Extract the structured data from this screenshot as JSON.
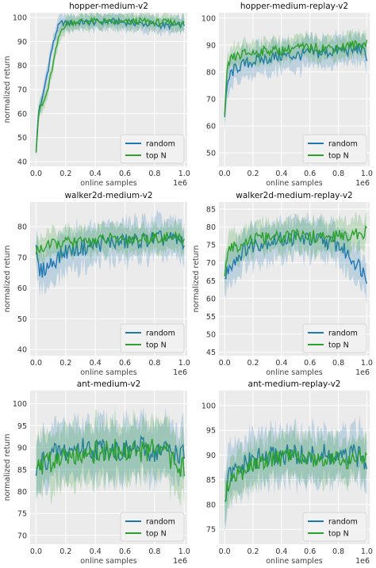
{
  "colors": {
    "random": "#1f77b4",
    "topN": "#2ca02c",
    "panel_bg": "#ebebeb",
    "grid": "#ffffff"
  },
  "chart_data": [
    {
      "type": "line",
      "title": "hopper-medium-v2",
      "xlabel": "online samples",
      "ylabel": "normalized return",
      "x_multiplier": "1e6",
      "xlim": [
        -0.04,
        1.02
      ],
      "ylim": [
        38,
        102
      ],
      "xticks": [
        0.0,
        0.2,
        0.4,
        0.6,
        0.8,
        1.0
      ],
      "xtick_labels": [
        "0.0",
        "0.2",
        "0.4",
        "0.6",
        "0.8",
        "1.0"
      ],
      "yticks": [
        40,
        50,
        60,
        70,
        80,
        90,
        100
      ],
      "ytick_labels": [
        "40",
        "50",
        "60",
        "70",
        "80",
        "90",
        "100"
      ],
      "legend": "lower-right",
      "series": [
        {
          "name": "random",
          "x": [
            0.0,
            0.02,
            0.04,
            0.06,
            0.08,
            0.1,
            0.12,
            0.14,
            0.16,
            0.18,
            0.2,
            0.25,
            0.3,
            0.4,
            0.5,
            0.6,
            0.7,
            0.8,
            0.9,
            1.0
          ],
          "values": [
            45,
            63,
            65,
            72,
            78,
            85,
            90,
            95,
            97,
            98,
            97.5,
            98,
            98,
            98,
            98.5,
            98,
            97.5,
            97,
            96.5,
            97
          ],
          "band": 3
        },
        {
          "name": "top N",
          "x": [
            0.0,
            0.02,
            0.04,
            0.06,
            0.08,
            0.1,
            0.12,
            0.14,
            0.16,
            0.18,
            0.2,
            0.25,
            0.3,
            0.4,
            0.5,
            0.6,
            0.7,
            0.8,
            0.9,
            1.0
          ],
          "values": [
            45,
            62,
            63,
            66,
            70,
            76,
            82,
            88,
            93,
            96,
            97,
            98,
            98.5,
            98.5,
            98,
            98,
            98.5,
            98,
            98,
            97.5
          ],
          "band": 3
        }
      ]
    },
    {
      "type": "line",
      "title": "hopper-medium-replay-v2",
      "xlabel": "online samples",
      "ylabel": "",
      "x_multiplier": "1e6",
      "xlim": [
        -0.04,
        1.02
      ],
      "ylim": [
        45,
        102
      ],
      "xticks": [
        0.0,
        0.2,
        0.4,
        0.6,
        0.8,
        1.0
      ],
      "xtick_labels": [
        "0.0",
        "0.2",
        "0.4",
        "0.6",
        "0.8",
        "1.0"
      ],
      "yticks": [
        50,
        60,
        70,
        80,
        90,
        100
      ],
      "ytick_labels": [
        "50",
        "60",
        "70",
        "80",
        "90",
        "100"
      ],
      "legend": "lower-right",
      "series": [
        {
          "name": "random",
          "x": [
            0.0,
            0.02,
            0.05,
            0.1,
            0.15,
            0.2,
            0.3,
            0.4,
            0.5,
            0.6,
            0.7,
            0.8,
            0.9,
            0.95,
            1.0
          ],
          "values": [
            63,
            76,
            80,
            82,
            83,
            84,
            85,
            86,
            86,
            87,
            87,
            88,
            88,
            89,
            86
          ],
          "band": 5
        },
        {
          "name": "top N",
          "x": [
            0.0,
            0.02,
            0.05,
            0.1,
            0.15,
            0.2,
            0.3,
            0.4,
            0.5,
            0.6,
            0.7,
            0.8,
            0.9,
            0.95,
            1.0
          ],
          "values": [
            63,
            82,
            85,
            86,
            87,
            87,
            88,
            88,
            89,
            89,
            89,
            89,
            90,
            90,
            91
          ],
          "band": 4
        }
      ]
    },
    {
      "type": "line",
      "title": "walker2d-medium-v2",
      "xlabel": "online samples",
      "ylabel": "normalized return",
      "x_multiplier": "1e6",
      "xlim": [
        -0.04,
        1.02
      ],
      "ylim": [
        38,
        88
      ],
      "xticks": [
        0.0,
        0.2,
        0.4,
        0.6,
        0.8,
        1.0
      ],
      "xtick_labels": [
        "0.0",
        "0.2",
        "0.4",
        "0.6",
        "0.8",
        "1.0"
      ],
      "yticks": [
        40,
        50,
        60,
        70,
        80
      ],
      "ytick_labels": [
        "40",
        "50",
        "60",
        "70",
        "80"
      ],
      "legend": "lower-right",
      "series": [
        {
          "name": "random",
          "x": [
            0.0,
            0.02,
            0.05,
            0.1,
            0.15,
            0.2,
            0.3,
            0.4,
            0.5,
            0.6,
            0.7,
            0.8,
            0.9,
            1.0
          ],
          "values": [
            72,
            65,
            66,
            68,
            70,
            72,
            73,
            74,
            75,
            75,
            75.5,
            76,
            76,
            75
          ],
          "band": 6
        },
        {
          "name": "top N",
          "x": [
            0.0,
            0.02,
            0.05,
            0.1,
            0.15,
            0.2,
            0.3,
            0.4,
            0.5,
            0.6,
            0.7,
            0.8,
            0.9,
            1.0
          ],
          "values": [
            72,
            73,
            73,
            74,
            74.5,
            75,
            75,
            75.5,
            76,
            76,
            76,
            76.5,
            76.5,
            76
          ],
          "band": 4
        }
      ]
    },
    {
      "type": "line",
      "title": "walker2d-medium-replay-v2",
      "xlabel": "online samples",
      "ylabel": "normalized return",
      "x_multiplier": "1e6",
      "xlim": [
        -0.04,
        1.02
      ],
      "ylim": [
        44,
        87
      ],
      "xticks": [
        0.0,
        0.2,
        0.4,
        0.6,
        0.8,
        1.0
      ],
      "xtick_labels": [
        "0.0",
        "0.2",
        "0.4",
        "0.6",
        "0.8",
        "1.0"
      ],
      "yticks": [
        45,
        50,
        55,
        60,
        65,
        70,
        75,
        80,
        85
      ],
      "ytick_labels": [
        "45",
        "50",
        "55",
        "60",
        "65",
        "70",
        "75",
        "80",
        "85"
      ],
      "legend": "lower-right",
      "series": [
        {
          "name": "random",
          "x": [
            0.0,
            0.02,
            0.05,
            0.1,
            0.15,
            0.2,
            0.3,
            0.4,
            0.5,
            0.6,
            0.7,
            0.8,
            0.85,
            0.9,
            0.95,
            1.0
          ],
          "values": [
            65,
            68,
            70,
            72,
            74,
            75,
            76,
            76.5,
            77,
            76.5,
            76,
            75,
            73,
            71,
            69,
            66
          ],
          "band": 5
        },
        {
          "name": "top N",
          "x": [
            0.0,
            0.02,
            0.05,
            0.1,
            0.15,
            0.2,
            0.3,
            0.4,
            0.5,
            0.6,
            0.7,
            0.8,
            0.85,
            0.9,
            0.95,
            1.0
          ],
          "values": [
            65,
            72,
            74,
            75,
            76,
            76.5,
            77,
            77,
            77.5,
            77.5,
            77,
            77.5,
            77.5,
            78,
            78,
            78.5
          ],
          "band": 4
        }
      ]
    },
    {
      "type": "line",
      "title": "ant-medium-v2",
      "xlabel": "online samples",
      "ylabel": "normalized return",
      "x_multiplier": "1e6",
      "xlim": [
        -0.04,
        1.02
      ],
      "ylim": [
        68,
        103
      ],
      "xticks": [
        0.0,
        0.2,
        0.4,
        0.6,
        0.8,
        1.0
      ],
      "xtick_labels": [
        "0.0",
        "0.2",
        "0.4",
        "0.6",
        "0.8",
        "1.0"
      ],
      "yticks": [
        70,
        75,
        80,
        85,
        90,
        95,
        100
      ],
      "ytick_labels": [
        "70",
        "75",
        "80",
        "85",
        "90",
        "95",
        "100"
      ],
      "legend": "lower-right",
      "series": [
        {
          "name": "random",
          "x": [
            0.0,
            0.02,
            0.05,
            0.1,
            0.15,
            0.2,
            0.3,
            0.4,
            0.5,
            0.6,
            0.7,
            0.8,
            0.9,
            1.0
          ],
          "values": [
            83,
            86,
            87,
            88,
            89,
            89,
            90,
            89.5,
            90,
            89,
            90,
            89,
            89.5,
            88
          ],
          "band": 6
        },
        {
          "name": "top N",
          "x": [
            0.0,
            0.02,
            0.05,
            0.1,
            0.15,
            0.2,
            0.3,
            0.4,
            0.5,
            0.6,
            0.7,
            0.8,
            0.9,
            1.0
          ],
          "values": [
            87,
            85,
            86,
            87,
            88,
            88.5,
            89,
            89,
            89.5,
            89,
            89,
            89.5,
            88,
            85
          ],
          "band": 6
        }
      ]
    },
    {
      "type": "line",
      "title": "ant-medium-replay-v2",
      "xlabel": "online samples",
      "ylabel": "",
      "x_multiplier": "1e6",
      "xlim": [
        -0.04,
        1.02
      ],
      "ylim": [
        72,
        103
      ],
      "xticks": [
        0.0,
        0.2,
        0.4,
        0.6,
        0.8,
        1.0
      ],
      "xtick_labels": [
        "0.0",
        "0.2",
        "0.4",
        "0.6",
        "0.8",
        "1.0"
      ],
      "yticks": [
        75,
        80,
        85,
        90,
        95,
        100
      ],
      "ytick_labels": [
        "75",
        "80",
        "85",
        "90",
        "95",
        "100"
      ],
      "legend": "lower-right",
      "series": [
        {
          "name": "random",
          "x": [
            0.0,
            0.02,
            0.05,
            0.1,
            0.15,
            0.2,
            0.3,
            0.4,
            0.5,
            0.6,
            0.7,
            0.8,
            0.9,
            1.0
          ],
          "values": [
            79,
            85,
            86,
            87,
            88,
            89,
            89.5,
            90,
            90,
            89.5,
            90,
            89,
            90,
            89
          ],
          "band": 5
        },
        {
          "name": "top N",
          "x": [
            0.0,
            0.02,
            0.05,
            0.1,
            0.15,
            0.2,
            0.3,
            0.4,
            0.5,
            0.6,
            0.7,
            0.8,
            0.9,
            1.0
          ],
          "values": [
            79,
            84,
            85,
            86,
            87,
            88,
            89,
            89.5,
            89.5,
            89,
            89.5,
            89,
            89,
            89.5
          ],
          "band": 4
        }
      ]
    }
  ]
}
